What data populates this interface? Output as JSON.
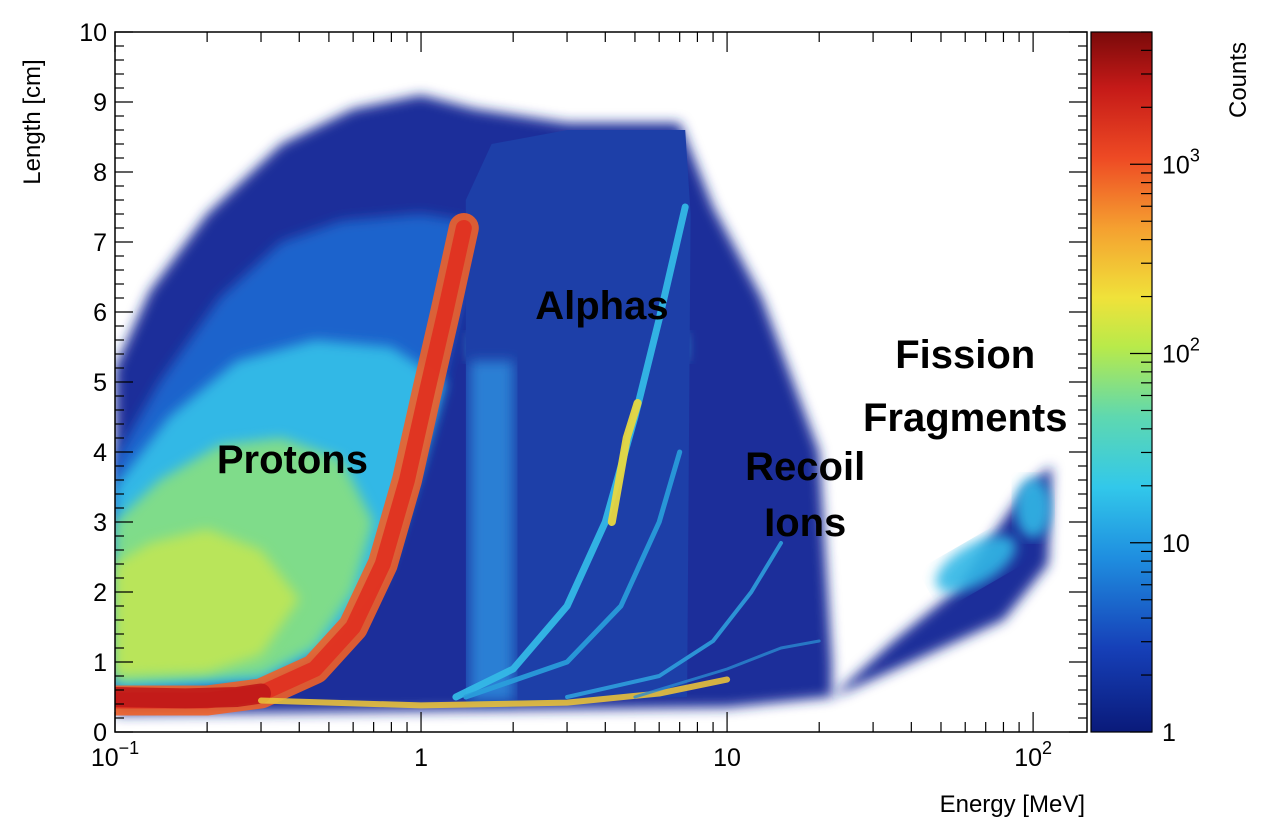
{
  "chart_data": {
    "type": "heatmap",
    "title": "",
    "xlabel": "Energy [MeV]",
    "ylabel": "Length [cm]",
    "colorbar_label": "Counts",
    "x_scale": "log",
    "xlim": [
      0.1,
      150
    ],
    "ylim": [
      0,
      10
    ],
    "z_scale": "log",
    "zlim": [
      1,
      5000
    ],
    "x_ticks": [
      {
        "value": 0.1,
        "base": "10",
        "exp": "−1"
      },
      {
        "value": 1,
        "text": "1"
      },
      {
        "value": 10,
        "text": "10"
      },
      {
        "value": 100,
        "base": "10",
        "exp": "2"
      }
    ],
    "y_ticks": [
      "0",
      "1",
      "2",
      "3",
      "4",
      "5",
      "6",
      "7",
      "8",
      "9",
      "10"
    ],
    "z_ticks": [
      {
        "value": 1,
        "text": "1"
      },
      {
        "value": 10,
        "text": "10"
      },
      {
        "value": 100,
        "base": "10",
        "exp": "2"
      },
      {
        "value": 1000,
        "base": "10",
        "exp": "3"
      }
    ],
    "annotations": [
      {
        "text": "Protons",
        "x": 0.38,
        "y": 3.7
      },
      {
        "text": "Alphas",
        "x": 3.9,
        "y": 5.9
      },
      {
        "text": "Recoil",
        "x": 18,
        "y": 3.6
      },
      {
        "text": "Ions",
        "x": 18,
        "y": 2.8
      },
      {
        "text": "Fission",
        "x": 60,
        "y": 5.2
      },
      {
        "text": "Fragments",
        "x": 60,
        "y": 4.3
      }
    ],
    "populations": [
      {
        "name": "Protons",
        "region": "E 0.1–1.4 MeV, L 0.3–7.3 cm",
        "peak_counts": 3000
      },
      {
        "name": "Alphas",
        "region": "E 1.5–7.5 MeV, L 0.4–7.5 cm",
        "peak_counts": 200
      },
      {
        "name": "Recoil Ions",
        "region": "E 2–15 MeV, L 0.3–2.5 cm",
        "peak_counts": 100
      },
      {
        "name": "Fission Fragments",
        "region": "E 40–110 MeV, L 1.8–3.8 cm",
        "peak_counts": 20
      }
    ]
  }
}
